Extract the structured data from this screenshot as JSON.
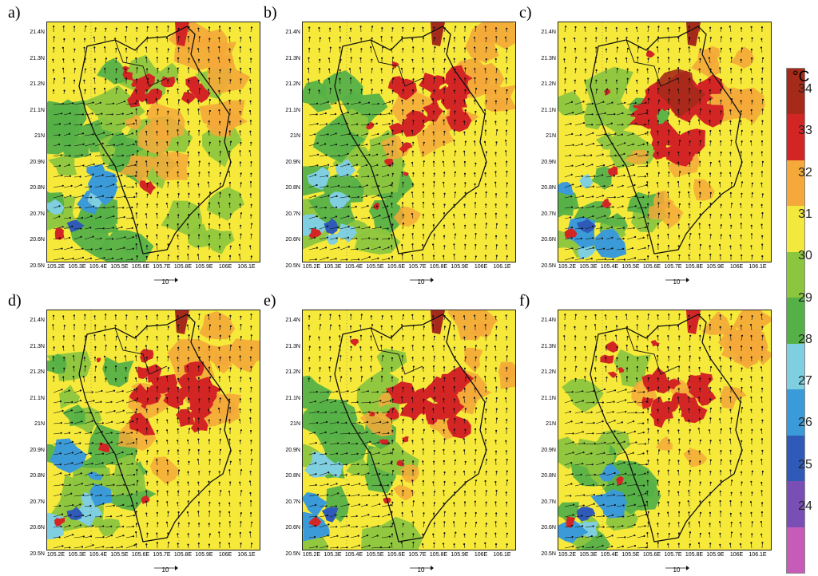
{
  "panels": [
    {
      "letter": "a)",
      "hot": 0.25,
      "cool": 0.8
    },
    {
      "letter": "b)",
      "hot": 0.65,
      "cool": 0.55
    },
    {
      "letter": "c)",
      "hot": 0.9,
      "cool": 0.55
    },
    {
      "letter": "d)",
      "hot": 0.75,
      "cool": 0.5
    },
    {
      "letter": "e)",
      "hot": 0.7,
      "cool": 0.5
    },
    {
      "letter": "f)",
      "hot": 0.6,
      "cool": 0.5
    }
  ],
  "lat_labels": [
    "21.4N",
    "21.3N",
    "21.2N",
    "21.1N",
    "21N",
    "20.9N",
    "20.8N",
    "20.7N",
    "20.6N",
    "20.5N"
  ],
  "lon_labels": [
    "105.2E",
    "105.3E",
    "105.4E",
    "105.5E",
    "105.6E",
    "105.7E",
    "105.8E",
    "105.9E",
    "106E",
    "106.1E"
  ],
  "ref_vector_label": "10",
  "colorbar": {
    "unit": "°C",
    "labels": [
      "34",
      "33",
      "32",
      "31",
      "30",
      "29",
      "28",
      "27",
      "26",
      "25",
      "24"
    ],
    "colors": [
      "#a52a1a",
      "#d42525",
      "#f4a93a",
      "#f3e83c",
      "#8cc63f",
      "#55b147",
      "#7fcfe0",
      "#3b9ad8",
      "#2f5ab8",
      "#7a4fb5",
      "#c65bb8"
    ]
  },
  "map_colors": {
    "base": "#f6e93a",
    "warm": "#f4a93a",
    "hot": "#d42525",
    "very_hot": "#a52a1a",
    "green": "#8cc63f",
    "dark_green": "#55b147",
    "light_blue": "#7fcfe0",
    "blue": "#3b9ad8",
    "dark_blue": "#2f5ab8"
  }
}
